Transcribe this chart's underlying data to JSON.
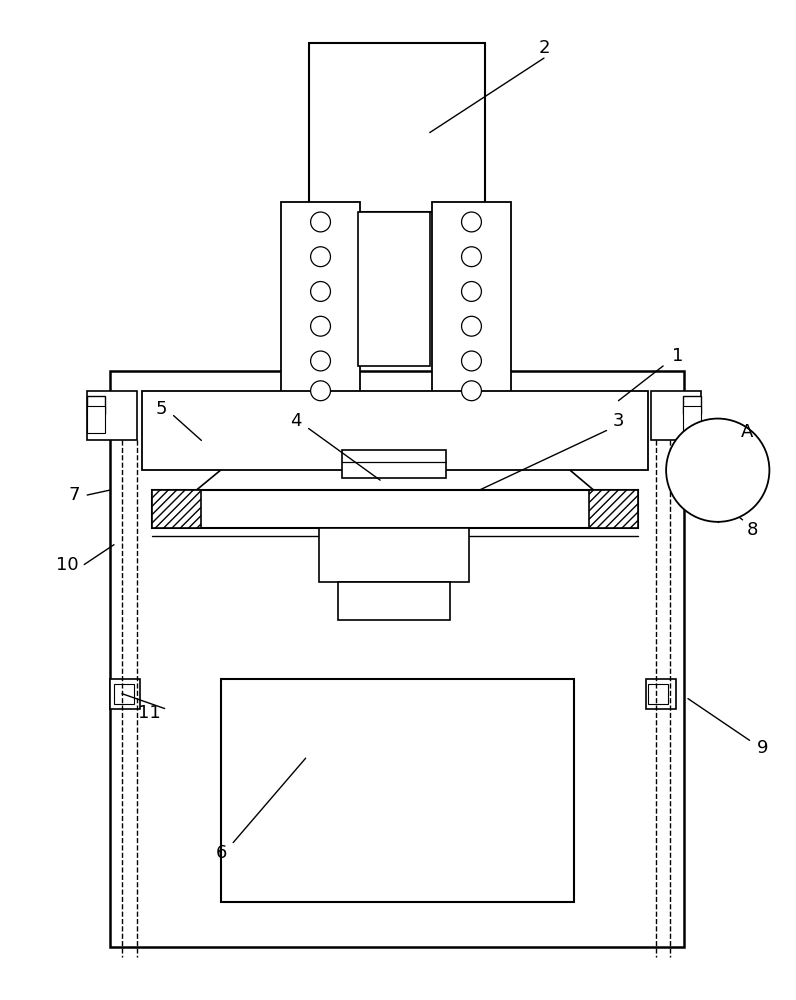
{
  "bg_color": "#ffffff",
  "lc": "#000000",
  "fig_w": 7.96,
  "fig_h": 10.0,
  "dpi": 100
}
